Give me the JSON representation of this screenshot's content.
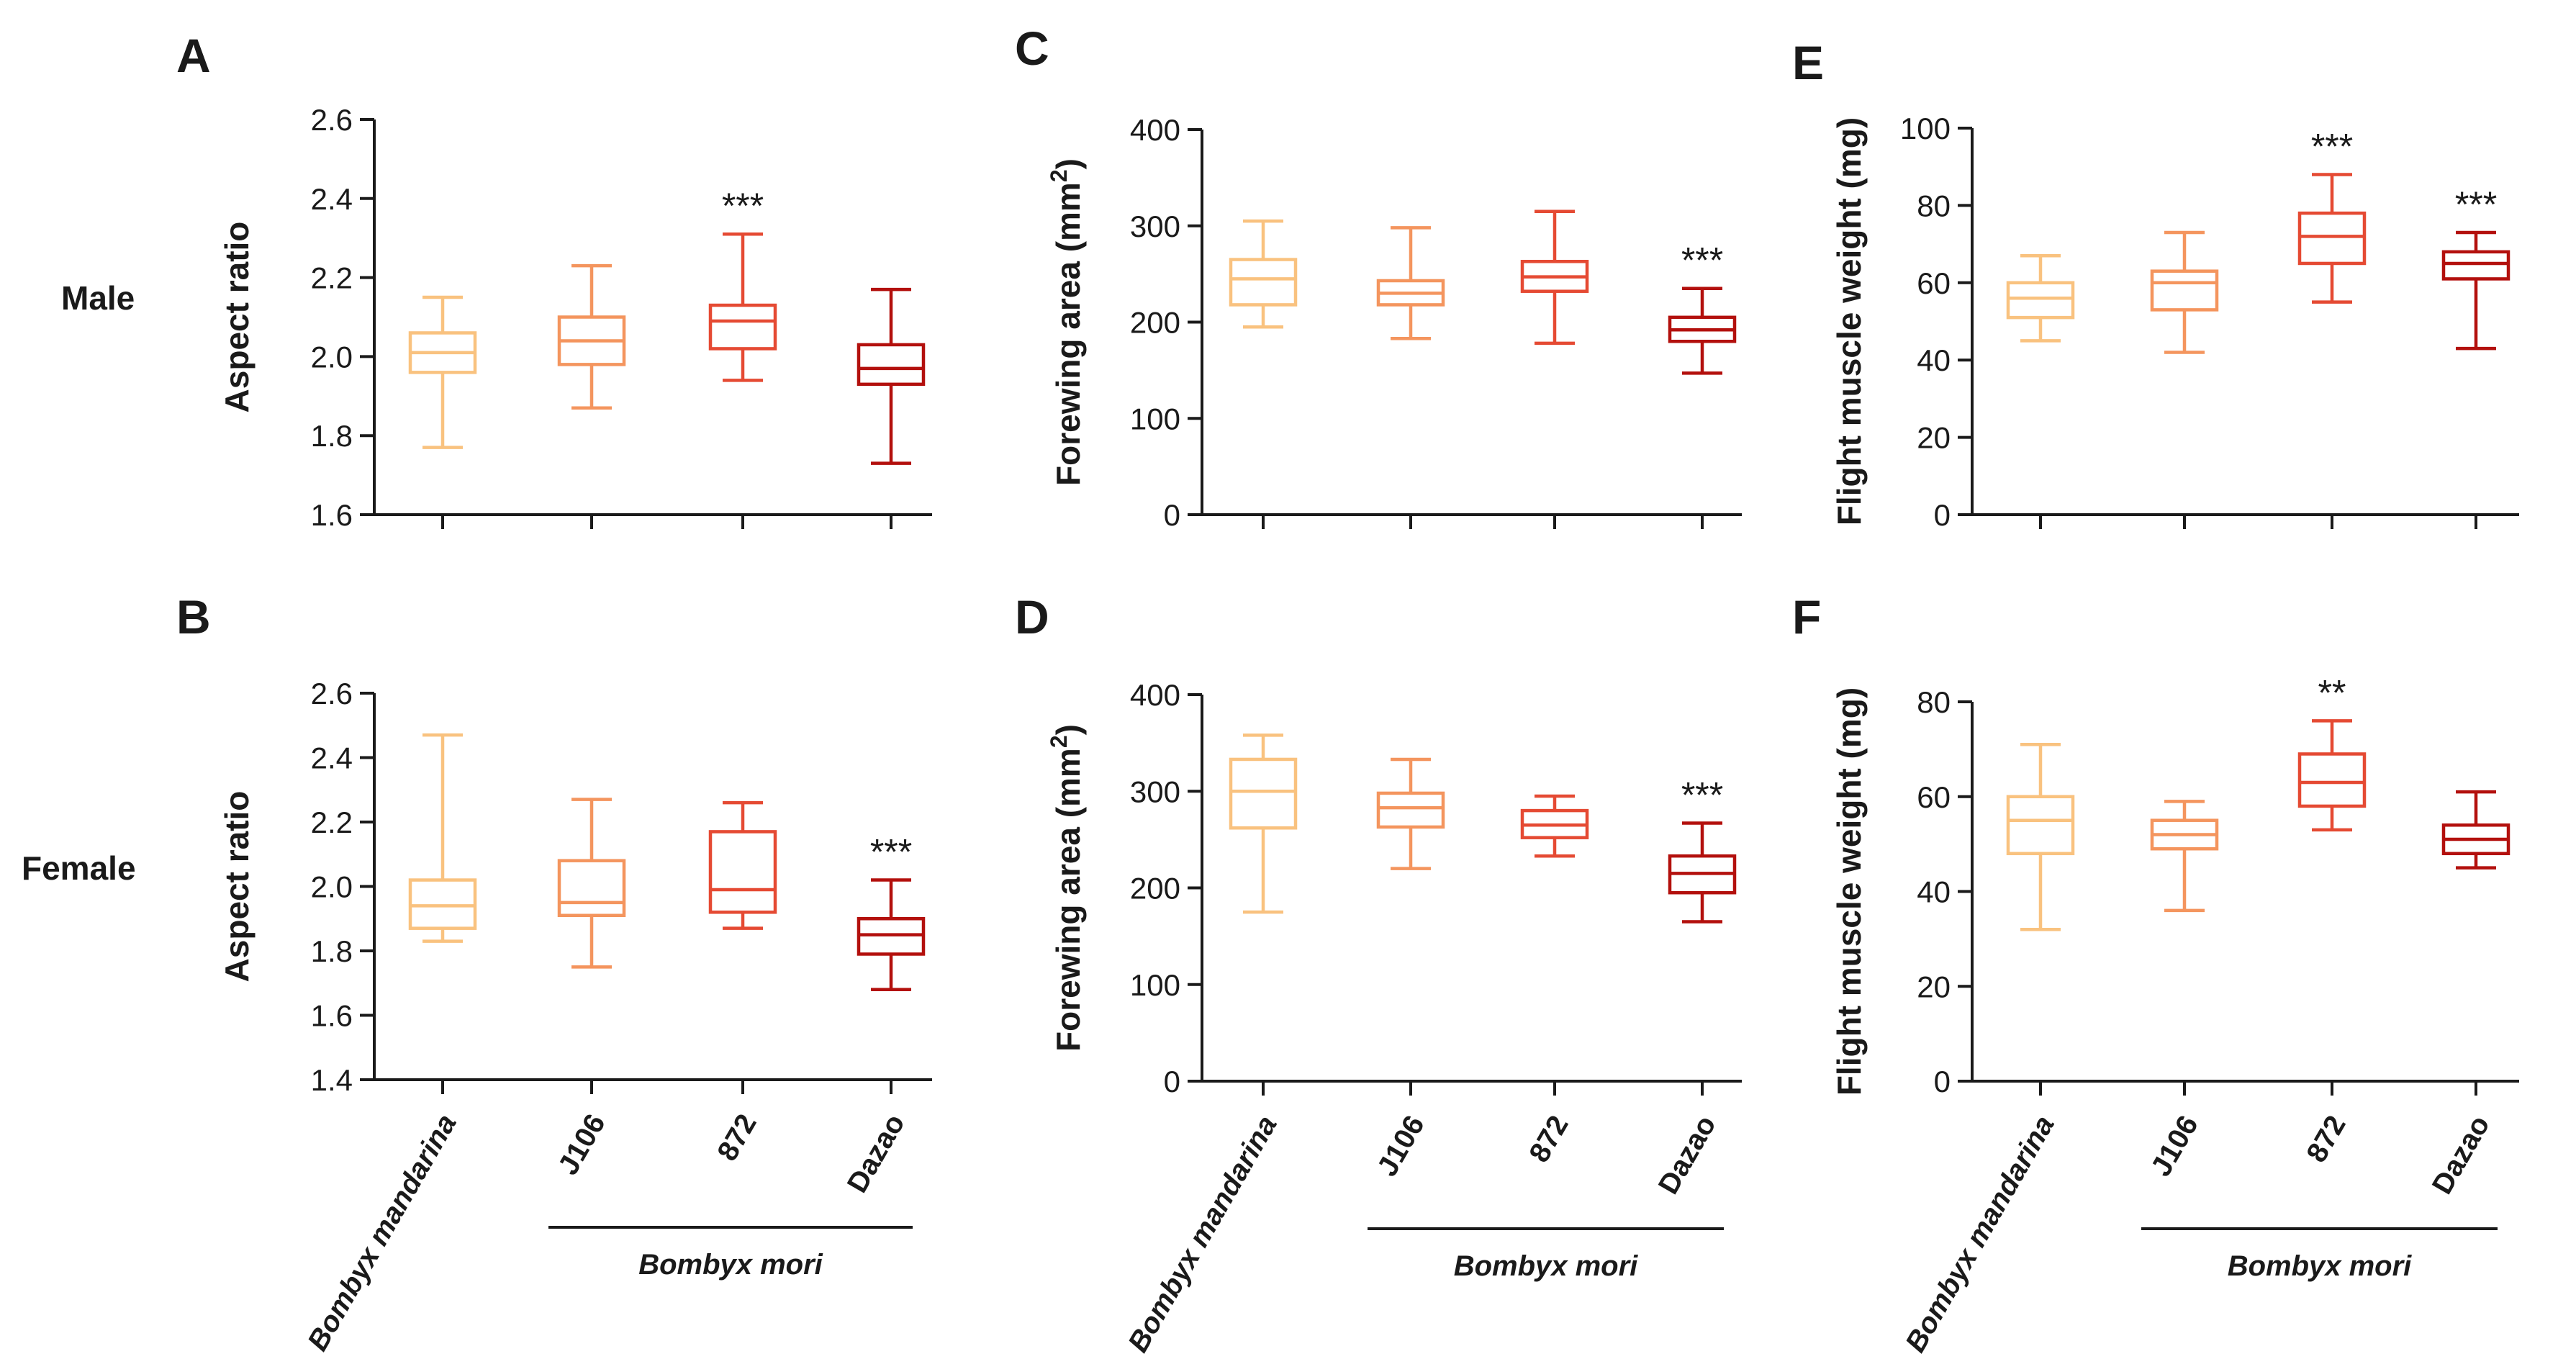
{
  "colors": {
    "Bombyx mandarina": "#f9c27f",
    "J106": "#f4955e",
    "872": "#e54a33",
    "Dazao": "#b3100d"
  },
  "group_label": "Bombyx mori",
  "chart_data": [
    {
      "panel": "A",
      "row_label": "Male",
      "type": "box",
      "ylabel": "Aspect ratio",
      "ylim": [
        1.6,
        2.6
      ],
      "yticks": [
        "1.6",
        "1.8",
        "2.0",
        "2.2",
        "2.4",
        "2.6"
      ],
      "categories": [
        "Bombyx mandarina",
        "J106",
        "872",
        "Dazao"
      ],
      "show_xlabels": false,
      "boxes": [
        {
          "min": 1.77,
          "q1": 1.96,
          "median": 2.01,
          "q3": 2.06,
          "max": 2.15,
          "sig": ""
        },
        {
          "min": 1.87,
          "q1": 1.98,
          "median": 2.04,
          "q3": 2.1,
          "max": 2.23,
          "sig": ""
        },
        {
          "min": 1.94,
          "q1": 2.02,
          "median": 2.09,
          "q3": 2.13,
          "max": 2.31,
          "sig": "***"
        },
        {
          "min": 1.73,
          "q1": 1.93,
          "median": 1.97,
          "q3": 2.03,
          "max": 2.17,
          "sig": ""
        }
      ]
    },
    {
      "panel": "B",
      "row_label": "Female",
      "type": "box",
      "ylabel": "Aspect ratio",
      "ylim": [
        1.4,
        2.6
      ],
      "yticks": [
        "1.4",
        "1.6",
        "1.8",
        "2.0",
        "2.2",
        "2.4",
        "2.6"
      ],
      "categories": [
        "Bombyx mandarina",
        "J106",
        "872",
        "Dazao"
      ],
      "show_xlabels": true,
      "boxes": [
        {
          "min": 1.83,
          "q1": 1.87,
          "median": 1.94,
          "q3": 2.02,
          "max": 2.47,
          "sig": ""
        },
        {
          "min": 1.75,
          "q1": 1.91,
          "median": 1.95,
          "q3": 2.08,
          "max": 2.27,
          "sig": ""
        },
        {
          "min": 1.87,
          "q1": 1.92,
          "median": 1.99,
          "q3": 2.17,
          "max": 2.26,
          "sig": ""
        },
        {
          "min": 1.68,
          "q1": 1.79,
          "median": 1.85,
          "q3": 1.9,
          "max": 2.02,
          "sig": "***"
        }
      ]
    },
    {
      "panel": "C",
      "type": "box",
      "ylabel": "Forewing area (mm",
      "ylabel_sup": "2",
      "ylabel_end": ")",
      "ylim": [
        0,
        400
      ],
      "yticks": [
        "0",
        "100",
        "200",
        "300",
        "400"
      ],
      "categories": [
        "Bombyx mandarina",
        "J106",
        "872",
        "Dazao"
      ],
      "show_xlabels": false,
      "boxes": [
        {
          "min": 195,
          "q1": 218,
          "median": 245,
          "q3": 265,
          "max": 305,
          "sig": ""
        },
        {
          "min": 183,
          "q1": 218,
          "median": 230,
          "q3": 243,
          "max": 298,
          "sig": ""
        },
        {
          "min": 178,
          "q1": 232,
          "median": 247,
          "q3": 263,
          "max": 315,
          "sig": ""
        },
        {
          "min": 147,
          "q1": 180,
          "median": 192,
          "q3": 205,
          "max": 235,
          "sig": "***"
        }
      ]
    },
    {
      "panel": "D",
      "type": "box",
      "ylabel": "Forewing area (mm",
      "ylabel_sup": "2",
      "ylabel_end": ")",
      "ylim": [
        0,
        400
      ],
      "yticks": [
        "0",
        "100",
        "200",
        "300",
        "400"
      ],
      "categories": [
        "Bombyx mandarina",
        "J106",
        "872",
        "Dazao"
      ],
      "show_xlabels": true,
      "boxes": [
        {
          "min": 175,
          "q1": 262,
          "median": 300,
          "q3": 333,
          "max": 358,
          "sig": ""
        },
        {
          "min": 220,
          "q1": 263,
          "median": 283,
          "q3": 298,
          "max": 333,
          "sig": ""
        },
        {
          "min": 233,
          "q1": 252,
          "median": 265,
          "q3": 280,
          "max": 295,
          "sig": ""
        },
        {
          "min": 165,
          "q1": 195,
          "median": 215,
          "q3": 233,
          "max": 267,
          "sig": "***"
        }
      ]
    },
    {
      "panel": "E",
      "type": "box",
      "ylabel": "Flight muscle weight (mg)",
      "ylim": [
        0,
        100
      ],
      "yticks": [
        "0",
        "20",
        "40",
        "60",
        "80",
        "100"
      ],
      "categories": [
        "Bombyx mandarina",
        "J106",
        "872",
        "Dazao"
      ],
      "show_xlabels": false,
      "boxes": [
        {
          "min": 45,
          "q1": 51,
          "median": 56,
          "q3": 60,
          "max": 67,
          "sig": ""
        },
        {
          "min": 42,
          "q1": 53,
          "median": 60,
          "q3": 63,
          "max": 73,
          "sig": ""
        },
        {
          "min": 55,
          "q1": 65,
          "median": 72,
          "q3": 78,
          "max": 88,
          "sig": "***"
        },
        {
          "min": 43,
          "q1": 61,
          "median": 65,
          "q3": 68,
          "max": 73,
          "sig": "***"
        }
      ]
    },
    {
      "panel": "F",
      "type": "box",
      "ylabel": "Flight muscle weight (mg)",
      "ylim": [
        0,
        80
      ],
      "yticks": [
        "0",
        "20",
        "40",
        "60",
        "80"
      ],
      "categories": [
        "Bombyx mandarina",
        "J106",
        "872",
        "Dazao"
      ],
      "show_xlabels": true,
      "boxes": [
        {
          "min": 32,
          "q1": 48,
          "median": 55,
          "q3": 60,
          "max": 71,
          "sig": ""
        },
        {
          "min": 36,
          "q1": 49,
          "median": 52,
          "q3": 55,
          "max": 59,
          "sig": ""
        },
        {
          "min": 53,
          "q1": 58,
          "median": 63,
          "q3": 69,
          "max": 76,
          "sig": "**"
        },
        {
          "min": 45,
          "q1": 48,
          "median": 51,
          "q3": 54,
          "max": 61,
          "sig": ""
        }
      ]
    }
  ]
}
